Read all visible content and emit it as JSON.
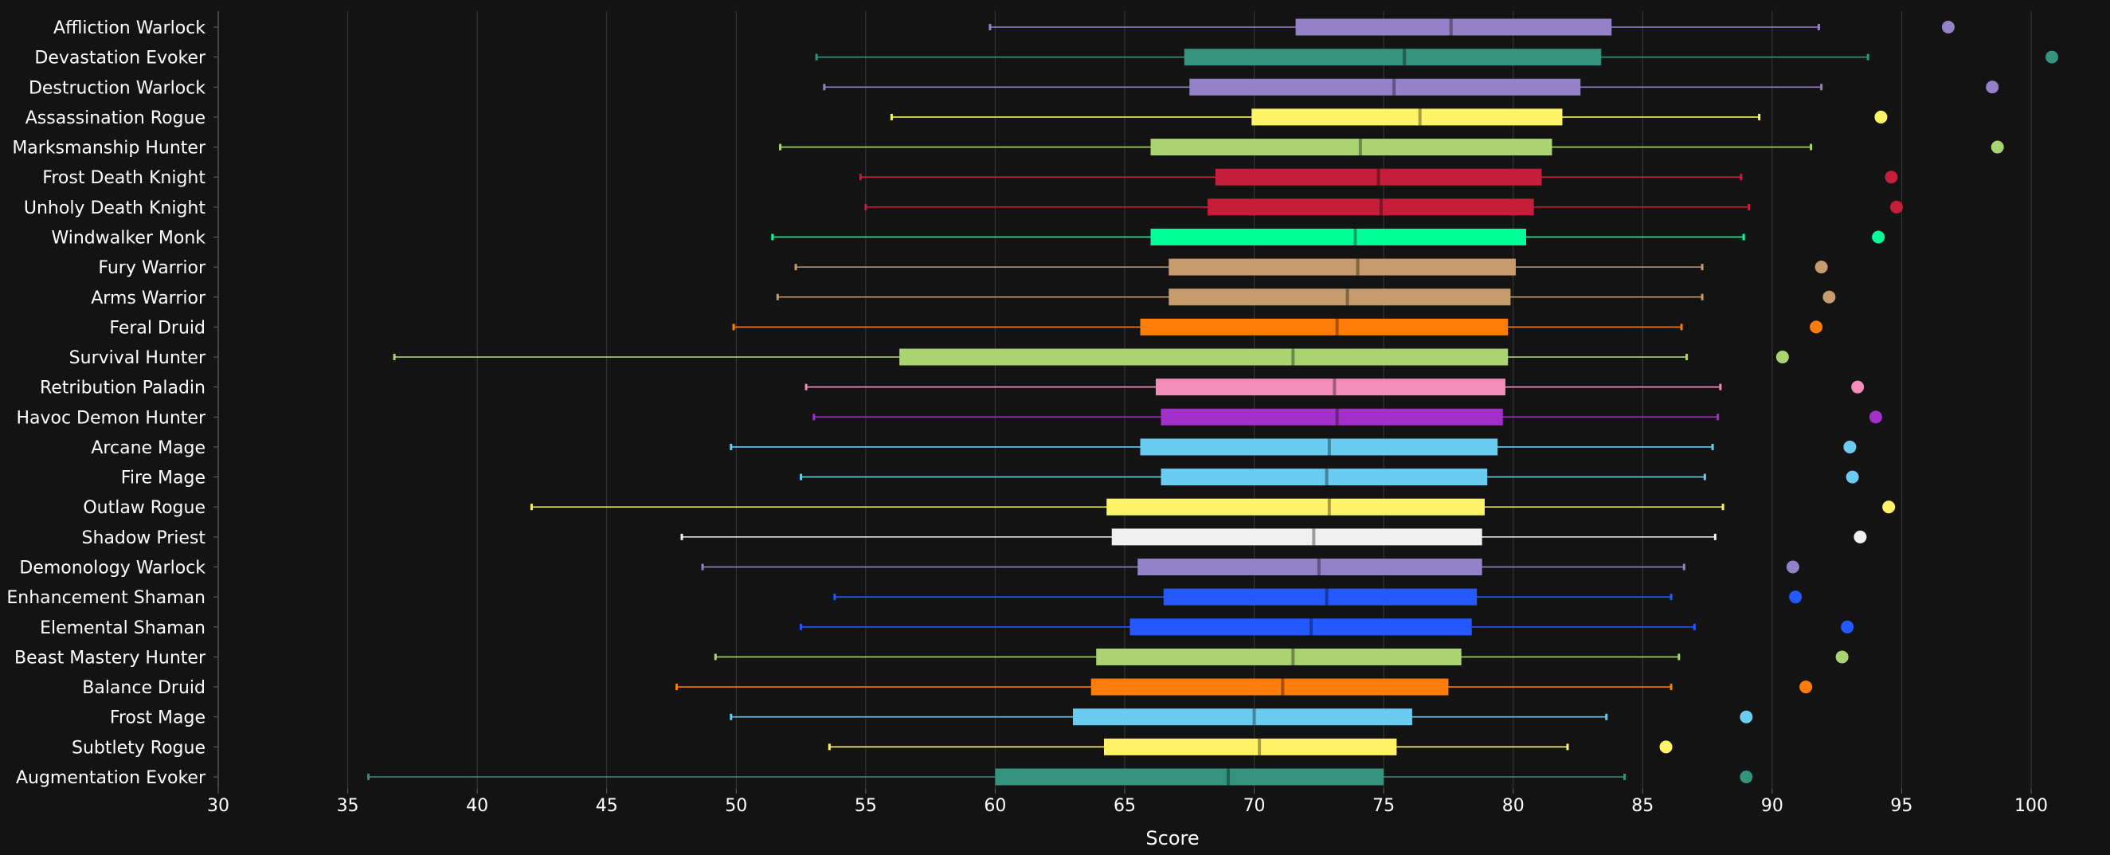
{
  "chart_data": {
    "type": "box",
    "orientation": "horizontal",
    "xlabel": "Score",
    "xlim": [
      30,
      102
    ],
    "xticks": [
      30,
      35,
      40,
      45,
      50,
      55,
      60,
      65,
      70,
      75,
      80,
      85,
      90,
      95,
      100
    ],
    "grid": true,
    "colors": {
      "background": "#131313",
      "grid": "#3a3a3a",
      "text": "#ffffff"
    },
    "series": [
      {
        "name": "Affliction Warlock",
        "color": "#9482C9",
        "min": 59.8,
        "q1": 71.6,
        "median": 77.6,
        "q3": 83.8,
        "max": 91.8,
        "outlier": 96.8
      },
      {
        "name": "Devastation Evoker",
        "color": "#33937F",
        "min": 53.1,
        "q1": 67.3,
        "median": 75.8,
        "q3": 83.4,
        "max": 93.7,
        "outlier": 100.8
      },
      {
        "name": "Destruction Warlock",
        "color": "#9482C9",
        "min": 53.4,
        "q1": 67.5,
        "median": 75.4,
        "q3": 82.6,
        "max": 91.9,
        "outlier": 98.5
      },
      {
        "name": "Assassination Rogue",
        "color": "#FFF468",
        "min": 56.0,
        "q1": 69.9,
        "median": 76.4,
        "q3": 81.9,
        "max": 89.5,
        "outlier": 94.2
      },
      {
        "name": "Marksmanship Hunter",
        "color": "#AAD372",
        "min": 51.7,
        "q1": 66.0,
        "median": 74.1,
        "q3": 81.5,
        "max": 91.5,
        "outlier": 98.7
      },
      {
        "name": "Frost Death Knight",
        "color": "#C41E3A",
        "min": 54.8,
        "q1": 68.5,
        "median": 74.8,
        "q3": 81.1,
        "max": 88.8,
        "outlier": 94.6
      },
      {
        "name": "Unholy Death Knight",
        "color": "#C41E3A",
        "min": 55.0,
        "q1": 68.2,
        "median": 74.9,
        "q3": 80.8,
        "max": 89.1,
        "outlier": 94.8
      },
      {
        "name": "Windwalker Monk",
        "color": "#00FF98",
        "min": 51.4,
        "q1": 66.0,
        "median": 73.9,
        "q3": 80.5,
        "max": 88.9,
        "outlier": 94.1
      },
      {
        "name": "Fury Warrior",
        "color": "#C69B6D",
        "min": 52.3,
        "q1": 66.7,
        "median": 74.0,
        "q3": 80.1,
        "max": 87.3,
        "outlier": 91.9
      },
      {
        "name": "Arms Warrior",
        "color": "#C69B6D",
        "min": 51.6,
        "q1": 66.7,
        "median": 73.6,
        "q3": 79.9,
        "max": 87.3,
        "outlier": 92.2
      },
      {
        "name": "Feral Druid",
        "color": "#FF7C0A",
        "min": 49.9,
        "q1": 65.6,
        "median": 73.2,
        "q3": 79.8,
        "max": 86.5,
        "outlier": 91.7
      },
      {
        "name": "Survival Hunter",
        "color": "#AAD372",
        "min": 36.8,
        "q1": 56.3,
        "median": 71.5,
        "q3": 79.8,
        "max": 86.7,
        "outlier": 90.4
      },
      {
        "name": "Retribution Paladin",
        "color": "#F48CBA",
        "min": 52.7,
        "q1": 66.2,
        "median": 73.1,
        "q3": 79.7,
        "max": 88.0,
        "outlier": 93.3
      },
      {
        "name": "Havoc Demon Hunter",
        "color": "#A330C9",
        "min": 53.0,
        "q1": 66.4,
        "median": 73.2,
        "q3": 79.6,
        "max": 87.9,
        "outlier": 94.0
      },
      {
        "name": "Arcane Mage",
        "color": "#69CCF0",
        "min": 49.8,
        "q1": 65.6,
        "median": 72.9,
        "q3": 79.4,
        "max": 87.7,
        "outlier": 93.0
      },
      {
        "name": "Fire Mage",
        "color": "#69CCF0",
        "min": 52.5,
        "q1": 66.4,
        "median": 72.8,
        "q3": 79.0,
        "max": 87.4,
        "outlier": 93.1
      },
      {
        "name": "Outlaw Rogue",
        "color": "#FFF468",
        "min": 42.1,
        "q1": 64.3,
        "median": 72.9,
        "q3": 78.9,
        "max": 88.1,
        "outlier": 94.5
      },
      {
        "name": "Shadow Priest",
        "color": "#F0F0F0",
        "min": 47.9,
        "q1": 64.5,
        "median": 72.3,
        "q3": 78.8,
        "max": 87.8,
        "outlier": 93.4
      },
      {
        "name": "Demonology Warlock",
        "color": "#9482C9",
        "min": 48.7,
        "q1": 65.5,
        "median": 72.5,
        "q3": 78.8,
        "max": 86.6,
        "outlier": 90.8
      },
      {
        "name": "Enhancement Shaman",
        "color": "#2459FF",
        "min": 53.8,
        "q1": 66.5,
        "median": 72.8,
        "q3": 78.6,
        "max": 86.1,
        "outlier": 90.9
      },
      {
        "name": "Elemental Shaman",
        "color": "#2459FF",
        "min": 52.5,
        "q1": 65.2,
        "median": 72.2,
        "q3": 78.4,
        "max": 87.0,
        "outlier": 92.9
      },
      {
        "name": "Beast Mastery Hunter",
        "color": "#AAD372",
        "min": 49.2,
        "q1": 63.9,
        "median": 71.5,
        "q3": 78.0,
        "max": 86.4,
        "outlier": 92.7
      },
      {
        "name": "Balance Druid",
        "color": "#FF7C0A",
        "min": 47.7,
        "q1": 63.7,
        "median": 71.1,
        "q3": 77.5,
        "max": 86.1,
        "outlier": 91.3
      },
      {
        "name": "Frost Mage",
        "color": "#69CCF0",
        "min": 49.8,
        "q1": 63.0,
        "median": 70.0,
        "q3": 76.1,
        "max": 83.6,
        "outlier": 89.0
      },
      {
        "name": "Subtlety Rogue",
        "color": "#FFF468",
        "min": 53.6,
        "q1": 64.2,
        "median": 70.2,
        "q3": 75.5,
        "max": 82.1,
        "outlier": 85.9
      },
      {
        "name": "Augmentation Evoker",
        "color": "#33937F",
        "min": 35.8,
        "q1": 60.0,
        "median": 69.0,
        "q3": 75.0,
        "max": 84.3,
        "outlier": 89.0
      }
    ]
  }
}
